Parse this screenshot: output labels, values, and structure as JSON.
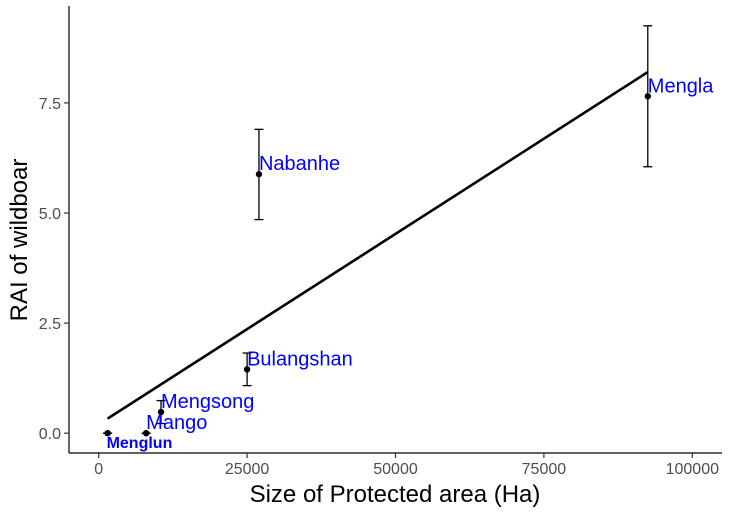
{
  "chart_data": {
    "type": "scatter",
    "title": "",
    "xlabel": "Size of Protected area (Ha)",
    "ylabel": "RAI of wildboar",
    "xlim": [
      -5000,
      105000
    ],
    "ylim": [
      -0.45,
      9.7
    ],
    "x_ticks": [
      0,
      25000,
      50000,
      75000,
      100000
    ],
    "x_tick_labels": [
      "0",
      "25000",
      "50000",
      "75000",
      "100000"
    ],
    "y_ticks": [
      0,
      2.5,
      5,
      7.5
    ],
    "y_tick_labels": [
      "0.0",
      "2.5",
      "5.0",
      "7.5"
    ],
    "grid": false,
    "label_color": "#0000ff",
    "points": [
      {
        "label": "Menglun",
        "x": 1500,
        "y": 0.0,
        "ymin": 0.0,
        "ymax": 0.0,
        "small": true
      },
      {
        "label": "Mango",
        "x": 8000,
        "y": 0.0,
        "ymin": 0.0,
        "ymax": 0.0
      },
      {
        "label": "Mengsong",
        "x": 10500,
        "y": 0.48,
        "ymin": 0.22,
        "ymax": 0.74
      },
      {
        "label": "Bulangshan",
        "x": 25000,
        "y": 1.45,
        "ymin": 1.08,
        "ymax": 1.82
      },
      {
        "label": "Nabanhe",
        "x": 27000,
        "y": 5.88,
        "ymin": 4.85,
        "ymax": 6.9
      },
      {
        "label": "Mengla",
        "x": 92500,
        "y": 7.65,
        "ymin": 6.05,
        "ymax": 9.25
      }
    ],
    "trend_line": {
      "x": [
        1500,
        92500
      ],
      "y": [
        0.33,
        8.2
      ]
    }
  }
}
